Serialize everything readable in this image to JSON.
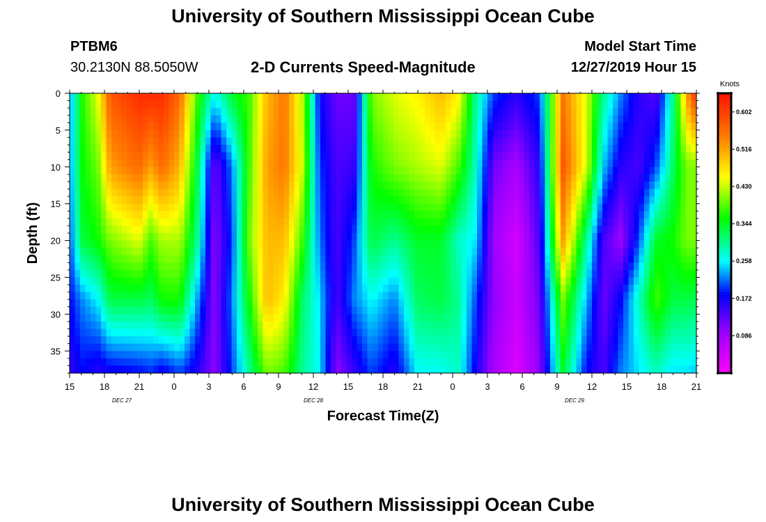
{
  "header": {
    "title": "University of Southern Mississippi Ocean Cube",
    "station_id": "PTBM6",
    "station_coords": "30.2130N 88.5050W",
    "plot_title": "2-D Currents Speed-Magnitude",
    "model_label": "Model Start Time",
    "model_time": "12/27/2019 Hour 15"
  },
  "footer": {
    "title": "University of Southern Mississippi Ocean Cube"
  },
  "chart_data": {
    "type": "heatmap",
    "title": "2-D Currents Speed-Magnitude",
    "xlabel": "Forecast Time(Z)",
    "ylabel": "Depth (ft)",
    "x_hours": [
      0,
      3,
      6,
      9,
      12,
      15,
      18,
      21,
      24,
      27,
      30,
      33,
      36,
      39,
      42,
      45,
      48,
      51,
      54
    ],
    "x_tick_labels": [
      "15",
      "18",
      "21",
      "0",
      "3",
      "6",
      "9",
      "12",
      "15",
      "18",
      "21",
      "0",
      "3",
      "6",
      "9",
      "12",
      "15",
      "18",
      "21"
    ],
    "date_labels": [
      {
        "text": "DEC 27",
        "hour": 4.5
      },
      {
        "text": "DEC 28",
        "hour": 21
      },
      {
        "text": "DEC 29",
        "hour": 43.5
      }
    ],
    "y_ticks": [
      0,
      5,
      10,
      15,
      20,
      25,
      30,
      35
    ],
    "ylim": [
      0,
      38
    ],
    "xlim": [
      0,
      54
    ],
    "colorbar": {
      "unit": "Knots",
      "ticks": [
        0.602,
        0.516,
        0.43,
        0.344,
        0.258,
        0.172,
        0.086
      ],
      "range": [
        0.0,
        0.645
      ]
    },
    "z_depths": [
      0,
      10,
      20,
      28,
      38
    ],
    "columns": [
      {
        "h": 0,
        "v": [
          0.22,
          0.22,
          0.2,
          0.18,
          0.15
        ]
      },
      {
        "h": 1.0,
        "v": [
          0.36,
          0.35,
          0.33,
          0.22,
          0.18
        ]
      },
      {
        "h": 2.5,
        "v": [
          0.45,
          0.4,
          0.36,
          0.26,
          0.16
        ]
      },
      {
        "h": 3.5,
        "v": [
          0.58,
          0.52,
          0.4,
          0.33,
          0.17
        ]
      },
      {
        "h": 6.0,
        "v": [
          0.62,
          0.56,
          0.44,
          0.33,
          0.18
        ]
      },
      {
        "h": 7.0,
        "v": [
          0.62,
          0.52,
          0.38,
          0.32,
          0.19
        ]
      },
      {
        "h": 8.0,
        "v": [
          0.62,
          0.56,
          0.42,
          0.36,
          0.17
        ]
      },
      {
        "h": 9.5,
        "v": [
          0.56,
          0.5,
          0.42,
          0.36,
          0.2
        ]
      },
      {
        "h": 11.0,
        "v": [
          0.38,
          0.33,
          0.3,
          0.23,
          0.16
        ]
      },
      {
        "h": 12.5,
        "v": [
          0.26,
          0.12,
          0.1,
          0.1,
          0.1
        ]
      },
      {
        "h": 14.0,
        "v": [
          0.34,
          0.22,
          0.2,
          0.22,
          0.2
        ]
      },
      {
        "h": 15.5,
        "v": [
          0.38,
          0.38,
          0.4,
          0.36,
          0.3
        ]
      },
      {
        "h": 17.0,
        "v": [
          0.5,
          0.52,
          0.5,
          0.5,
          0.4
        ]
      },
      {
        "h": 18.5,
        "v": [
          0.55,
          0.55,
          0.5,
          0.46,
          0.38
        ]
      },
      {
        "h": 20.0,
        "v": [
          0.43,
          0.44,
          0.38,
          0.32,
          0.3
        ]
      },
      {
        "h": 21.5,
        "v": [
          0.18,
          0.2,
          0.22,
          0.25,
          0.26
        ]
      },
      {
        "h": 23.0,
        "v": [
          0.12,
          0.14,
          0.14,
          0.14,
          0.1
        ]
      },
      {
        "h": 24.5,
        "v": [
          0.12,
          0.15,
          0.2,
          0.22,
          0.15
        ]
      },
      {
        "h": 26.0,
        "v": [
          0.4,
          0.36,
          0.33,
          0.26,
          0.2
        ]
      },
      {
        "h": 28.0,
        "v": [
          0.44,
          0.4,
          0.3,
          0.22,
          0.16
        ]
      },
      {
        "h": 30.0,
        "v": [
          0.46,
          0.42,
          0.34,
          0.32,
          0.26
        ]
      },
      {
        "h": 32.0,
        "v": [
          0.5,
          0.44,
          0.34,
          0.33,
          0.26
        ]
      },
      {
        "h": 33.5,
        "v": [
          0.46,
          0.38,
          0.28,
          0.3,
          0.28
        ]
      },
      {
        "h": 35.0,
        "v": [
          0.3,
          0.28,
          0.25,
          0.2,
          0.17
        ]
      },
      {
        "h": 36.5,
        "v": [
          0.2,
          0.12,
          0.09,
          0.1,
          0.08
        ]
      },
      {
        "h": 38.5,
        "v": [
          0.16,
          0.08,
          0.04,
          0.05,
          0.03
        ]
      },
      {
        "h": 40.5,
        "v": [
          0.2,
          0.16,
          0.14,
          0.12,
          0.1
        ]
      },
      {
        "h": 42.5,
        "v": [
          0.55,
          0.58,
          0.52,
          0.4,
          0.34
        ]
      },
      {
        "h": 44.5,
        "v": [
          0.44,
          0.44,
          0.3,
          0.24,
          0.18
        ]
      },
      {
        "h": 46.0,
        "v": [
          0.3,
          0.24,
          0.14,
          0.12,
          0.14
        ]
      },
      {
        "h": 47.5,
        "v": [
          0.22,
          0.16,
          0.09,
          0.18,
          0.22
        ]
      },
      {
        "h": 49.0,
        "v": [
          0.16,
          0.14,
          0.2,
          0.28,
          0.25
        ]
      },
      {
        "h": 50.5,
        "v": [
          0.13,
          0.2,
          0.34,
          0.38,
          0.28
        ]
      },
      {
        "h": 52.0,
        "v": [
          0.3,
          0.32,
          0.36,
          0.33,
          0.25
        ]
      },
      {
        "h": 53.2,
        "v": [
          0.52,
          0.4,
          0.4,
          0.33,
          0.25
        ]
      },
      {
        "h": 54,
        "v": [
          0.62,
          0.4,
          0.4,
          0.32,
          0.24
        ]
      }
    ]
  }
}
